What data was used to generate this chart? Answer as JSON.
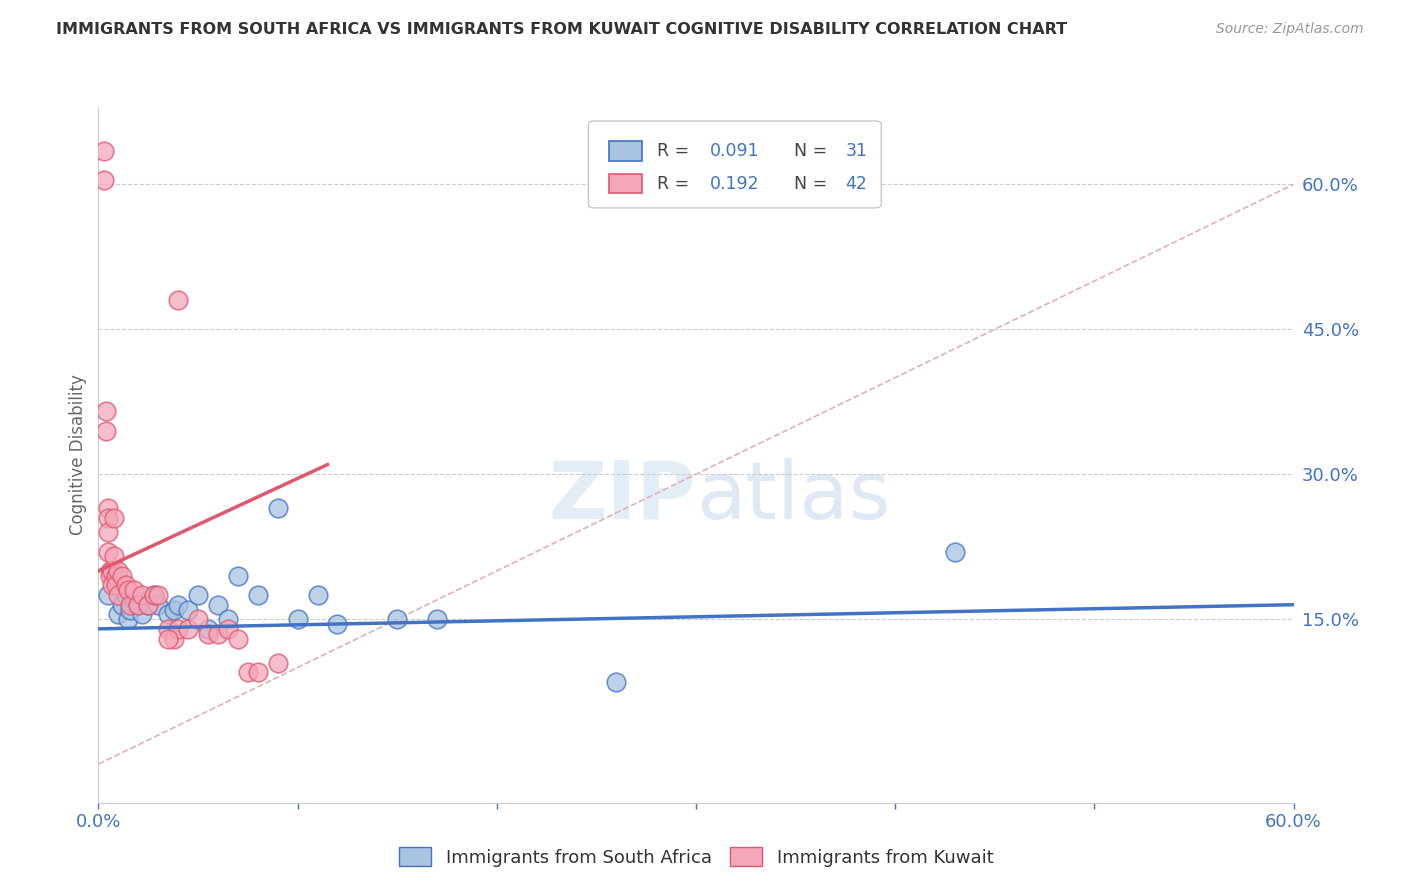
{
  "title": "IMMIGRANTS FROM SOUTH AFRICA VS IMMIGRANTS FROM KUWAIT COGNITIVE DISABILITY CORRELATION CHART",
  "source": "Source: ZipAtlas.com",
  "ylabel": "Cognitive Disability",
  "ytick_labels": [
    "15.0%",
    "30.0%",
    "45.0%",
    "60.0%"
  ],
  "ytick_values": [
    0.15,
    0.3,
    0.45,
    0.6
  ],
  "xlim": [
    0.0,
    0.6
  ],
  "ylim": [
    -0.04,
    0.68
  ],
  "color_blue": "#a8c4e0",
  "color_blue_line": "#4472c4",
  "color_pink": "#f4a7b9",
  "color_pink_line": "#e05870",
  "color_legend_r": "#4472c4",
  "color_axis_labels": "#4472c4",
  "color_grid": "#cccccc",
  "color_diag": "#e0b0b8",
  "south_africa_x": [
    0.005,
    0.008,
    0.01,
    0.012,
    0.014,
    0.015,
    0.016,
    0.018,
    0.02,
    0.022,
    0.025,
    0.028,
    0.03,
    0.035,
    0.038,
    0.04,
    0.045,
    0.05,
    0.055,
    0.06,
    0.065,
    0.07,
    0.08,
    0.09,
    0.1,
    0.11,
    0.12,
    0.15,
    0.17,
    0.43,
    0.26
  ],
  "south_africa_y": [
    0.175,
    0.195,
    0.155,
    0.165,
    0.175,
    0.15,
    0.16,
    0.17,
    0.165,
    0.155,
    0.165,
    0.175,
    0.165,
    0.155,
    0.16,
    0.165,
    0.16,
    0.175,
    0.14,
    0.165,
    0.15,
    0.195,
    0.175,
    0.265,
    0.15,
    0.175,
    0.145,
    0.15,
    0.15,
    0.22,
    0.085
  ],
  "kuwait_x": [
    0.003,
    0.003,
    0.004,
    0.004,
    0.005,
    0.005,
    0.005,
    0.005,
    0.006,
    0.006,
    0.007,
    0.007,
    0.008,
    0.008,
    0.009,
    0.009,
    0.01,
    0.01,
    0.012,
    0.014,
    0.015,
    0.016,
    0.018,
    0.02,
    0.022,
    0.025,
    0.028,
    0.03,
    0.035,
    0.038,
    0.04,
    0.045,
    0.05,
    0.055,
    0.06,
    0.065,
    0.07,
    0.075,
    0.08,
    0.09,
    0.04,
    0.035
  ],
  "kuwait_y": [
    0.635,
    0.605,
    0.365,
    0.345,
    0.265,
    0.255,
    0.24,
    0.22,
    0.2,
    0.195,
    0.2,
    0.185,
    0.255,
    0.215,
    0.195,
    0.185,
    0.2,
    0.175,
    0.195,
    0.185,
    0.18,
    0.165,
    0.18,
    0.165,
    0.175,
    0.165,
    0.175,
    0.175,
    0.14,
    0.13,
    0.14,
    0.14,
    0.15,
    0.135,
    0.135,
    0.14,
    0.13,
    0.095,
    0.095,
    0.105,
    0.48,
    0.13
  ]
}
